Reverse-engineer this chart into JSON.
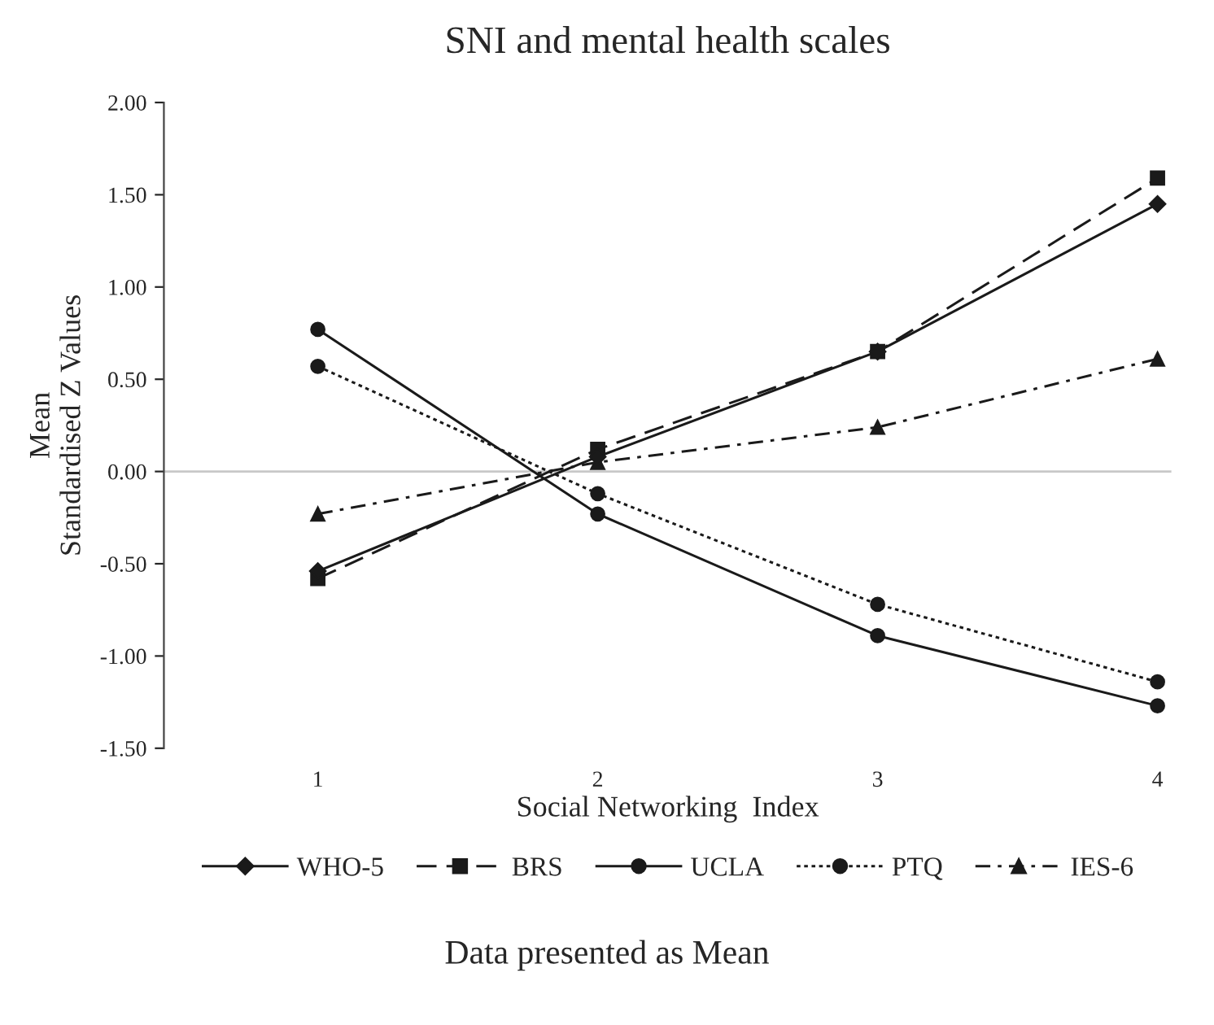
{
  "chart_data": {
    "type": "line",
    "title": "SNI and mental health scales",
    "xlabel": "Social Networking  Index",
    "ylabel": "Mean\nStandardised Z Values",
    "categories": [
      "1",
      "2",
      "3",
      "4"
    ],
    "series": [
      {
        "name": "WHO-5",
        "color": "#1a1a1a",
        "marker": "diamond",
        "line_style": "solid",
        "values": [
          -0.54,
          0.08,
          0.65,
          1.45
        ]
      },
      {
        "name": "BRS",
        "color": "#1a1a1a",
        "marker": "square",
        "line_style": "dashed",
        "values": [
          -0.58,
          0.12,
          0.65,
          1.59
        ]
      },
      {
        "name": "UCLA",
        "color": "#1a1a1a",
        "marker": "circle",
        "line_style": "solid",
        "values": [
          0.77,
          -0.23,
          -0.89,
          -1.27
        ]
      },
      {
        "name": "PTQ",
        "color": "#1a1a1a",
        "marker": "circle",
        "line_style": "dotted",
        "values": [
          0.57,
          -0.12,
          -0.72,
          -1.14
        ]
      },
      {
        "name": "IES-6",
        "color": "#1a1a1a",
        "marker": "triangle",
        "line_style": "dashdot",
        "values": [
          -0.23,
          0.05,
          0.24,
          0.61
        ]
      }
    ],
    "ylim": [
      -1.5,
      2.0
    ],
    "yticks": [
      {
        "value": -1.5,
        "label": "-1.50"
      },
      {
        "value": -1.0,
        "label": "-1.00"
      },
      {
        "value": -0.5,
        "label": "-0.50"
      },
      {
        "value": 0.0,
        "label": "0.00"
      },
      {
        "value": 0.5,
        "label": "0.50"
      },
      {
        "value": 1.0,
        "label": "1.00"
      },
      {
        "value": 1.5,
        "label": "1.50"
      },
      {
        "value": 2.0,
        "label": "2.00"
      }
    ],
    "ref_lines": [
      {
        "axis": "y",
        "value": 0,
        "color": "#c8c8c8",
        "line_style": "solid"
      }
    ],
    "grid": false,
    "legend": "bottom",
    "annotations": [
      "Data presented as Mean"
    ]
  }
}
